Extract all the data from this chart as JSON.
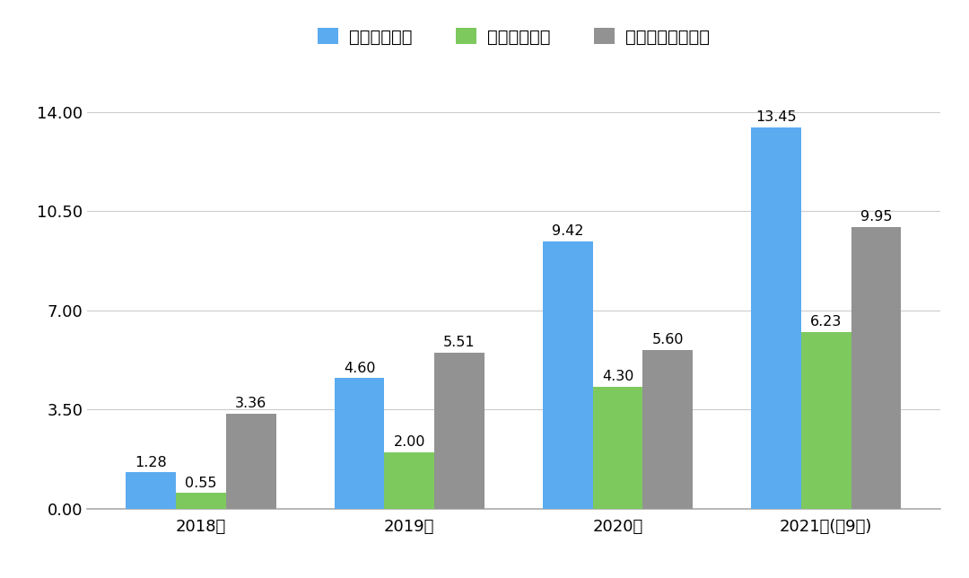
{
  "categories": [
    "2018年",
    "2019年",
    "2020年",
    "2021年(前9月)"
  ],
  "revenue": [
    1.28,
    4.6,
    9.42,
    13.45
  ],
  "gross_profit": [
    0.55,
    2.0,
    4.3,
    6.23
  ],
  "op_loss": [
    3.36,
    5.51,
    5.6,
    9.95
  ],
  "revenue_color": "#5aabf0",
  "gross_profit_color": "#7dc95e",
  "op_loss_color": "#929292",
  "background_color": "#ffffff",
  "legend_labels": [
    "收入（亿元）",
    "毛利（亿元）",
    "经营亏损（亿元）"
  ],
  "yticks": [
    0.0,
    3.5,
    7.0,
    10.5,
    14.0
  ],
  "ylim": [
    0,
    15.5
  ],
  "bar_width": 0.24,
  "label_fontsize": 11.5,
  "tick_fontsize": 13,
  "legend_fontsize": 14
}
